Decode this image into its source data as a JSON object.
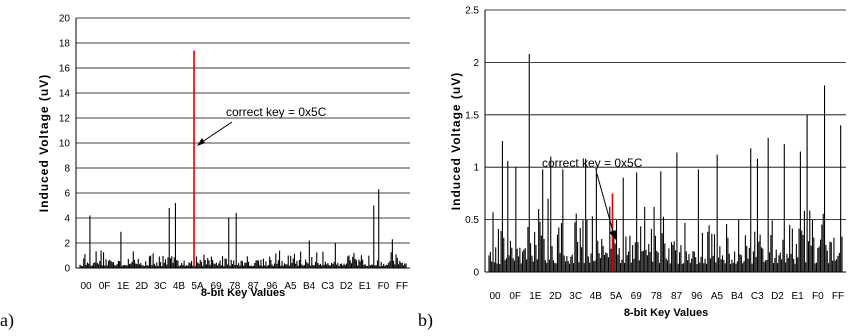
{
  "chart_data": [
    {
      "type": "bar",
      "panel_label": "a)",
      "xlabel": "8-bit Key Values",
      "ylabel": "Induced Voltage (uV)",
      "ylim": [
        0,
        20
      ],
      "yticks": [
        "0",
        "2",
        "4",
        "6",
        "8",
        "10",
        "12",
        "14",
        "16",
        "18",
        "20"
      ],
      "xticks": [
        "00",
        "0F",
        "1E",
        "2D",
        "3C",
        "4B",
        "5A",
        "69",
        "78",
        "87",
        "96",
        "A5",
        "B4",
        "C3",
        "D2",
        "E1",
        "F0",
        "FF"
      ],
      "grid": true,
      "annotation": "correct key = 0x5C",
      "highlight": {
        "key": 92,
        "value": 17.4,
        "color": "#e00000"
      },
      "peaks": {
        "8": 4.2,
        "33": 2.9,
        "72": 4.8,
        "77": 5.2,
        "120": 4.0,
        "126": 4.4,
        "185": 2.2,
        "206": 2.0,
        "237": 5.0,
        "241": 6.3,
        "252": 2.3
      },
      "noise_level": 1.0
    },
    {
      "type": "bar",
      "panel_label": "b)",
      "xlabel": "8-bit Key Values",
      "ylabel": "Induced Voltage (uV)",
      "ylim": [
        0,
        2.5
      ],
      "yticks": [
        "0",
        "0.5",
        "1",
        "1.5",
        "2",
        "2.5"
      ],
      "xticks": [
        "00",
        "0F",
        "1E",
        "2D",
        "3C",
        "4B",
        "5A",
        "69",
        "78",
        "87",
        "96",
        "A5",
        "B4",
        "C3",
        "D2",
        "E1",
        "F0",
        "FF"
      ],
      "grid": true,
      "annotation": "correct key = 0x5C",
      "highlight": {
        "key": 92,
        "value": 0.75,
        "color": "#e00000"
      },
      "peaks": {
        "10": 1.25,
        "14": 1.06,
        "20": 1.0,
        "30": 2.08,
        "40": 0.98,
        "46": 1.1,
        "55": 0.98,
        "72": 1.08,
        "80": 0.98,
        "100": 0.9,
        "110": 0.95,
        "128": 0.96,
        "140": 1.14,
        "156": 0.98,
        "170": 1.12,
        "195": 1.18,
        "200": 1.08,
        "208": 1.28,
        "220": 1.22,
        "232": 1.15,
        "237": 1.5,
        "250": 1.78,
        "262": 1.4
      },
      "noise_level": 0.5
    }
  ]
}
